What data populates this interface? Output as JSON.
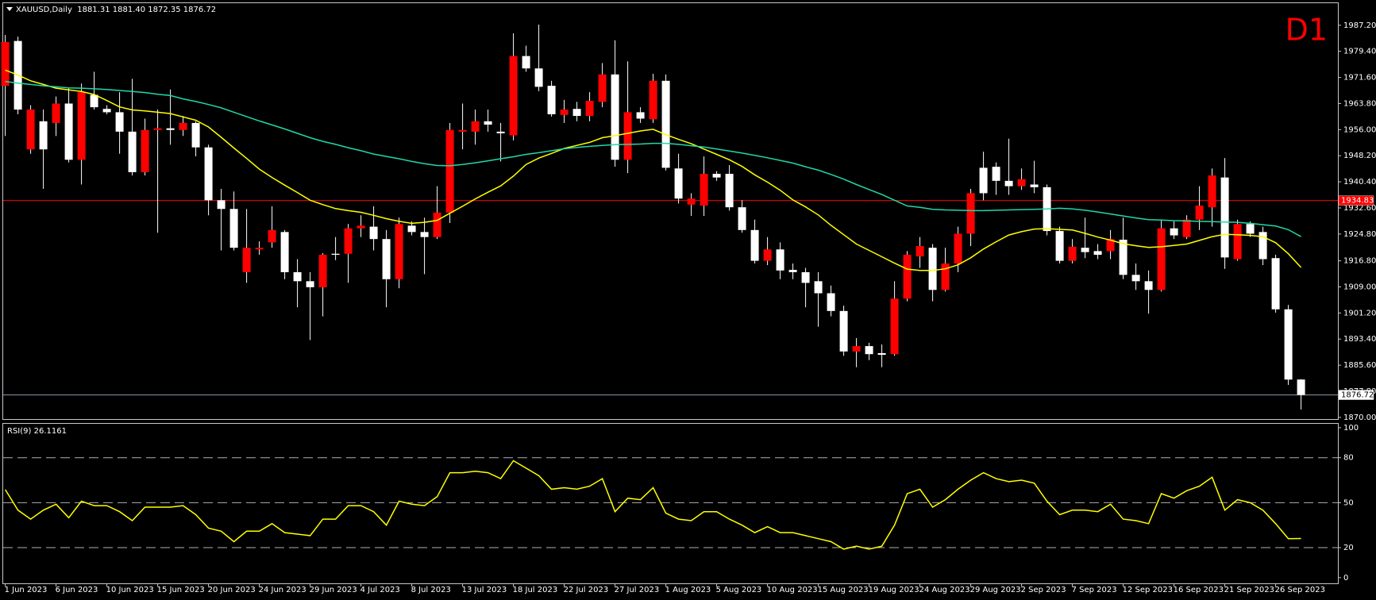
{
  "chart_data": [
    {
      "type": "candlestick",
      "title": "XAUUSD,Daily  1881.31 1881.40 1872.35 1876.72",
      "timeframe": "D1",
      "up_color": "#ff0000",
      "down_color": "#ffffff",
      "wick_color": "#ffffff",
      "open": [
        1969.1,
        1982.5,
        1950.1,
        1958.5,
        1958.0,
        1963.8,
        1947.0,
        1966.4,
        1962.2,
        1961.2,
        1955.4,
        1943.3,
        1955.9,
        1956.4,
        1955.9,
        1958.0,
        1950.7,
        1934.9,
        1932.3,
        1913.4,
        1920.2,
        1922.3,
        1925.4,
        1913.4,
        1910.7,
        1908.9,
        1918.9,
        1918.9,
        1926.5,
        1927.0,
        1923.3,
        1911.3,
        1927.3,
        1925.4,
        1923.9,
        1931.2,
        1955.4,
        1955.4,
        1958.5,
        1955.4,
        1954.3,
        1978.0,
        1974.3,
        1969.1,
        1960.4,
        1962.2,
        1960.1,
        1964.3,
        1972.5,
        1947.0,
        1961.2,
        1959.1,
        1970.6,
        1944.4,
        1933.6,
        1933.3,
        1942.8,
        1942.8,
        1932.8,
        1926.0,
        1916.8,
        1920.2,
        1914.1,
        1913.4,
        1910.7,
        1907.1,
        1901.8,
        1889.7,
        1891.3,
        1889.2,
        1888.9,
        1905.5,
        1918.1,
        1920.7,
        1908.1,
        1916.0,
        1924.9,
        1944.6,
        1944.9,
        1940.7,
        1939.1,
        1939.6,
        1938.8,
        1925.7,
        1916.8,
        1920.7,
        1919.7,
        1919.7,
        1923.1,
        1912.6,
        1910.7,
        1908.1,
        1926.5,
        1923.9,
        1929.1,
        1932.8,
        1941.7,
        1917.3,
        1927.8,
        1925.4,
        1917.6,
        1902.3,
        1881.31
      ],
      "high": [
        1984.3,
        1983.8,
        1963.3,
        1962.0,
        1965.9,
        1968.5,
        1969.8,
        1973.3,
        1963.3,
        1967.2,
        1971.2,
        1959.3,
        1962.0,
        1968.0,
        1960.1,
        1958.5,
        1951.5,
        1938.3,
        1937.5,
        1932.3,
        1922.6,
        1933.1,
        1926.0,
        1917.3,
        1913.4,
        1919.1,
        1923.9,
        1927.8,
        1930.4,
        1933.1,
        1926.0,
        1929.7,
        1928.6,
        1929.7,
        1939.1,
        1958.0,
        1963.8,
        1962.0,
        1962.0,
        1958.0,
        1984.8,
        1981.1,
        1987.4,
        1970.6,
        1964.9,
        1964.3,
        1967.2,
        1975.9,
        1982.7,
        1976.4,
        1962.7,
        1972.7,
        1972.5,
        1948.8,
        1937.0,
        1948.0,
        1943.6,
        1945.4,
        1934.9,
        1929.1,
        1923.9,
        1922.3,
        1916.0,
        1914.7,
        1913.4,
        1909.4,
        1903.4,
        1893.7,
        1892.3,
        1891.8,
        1910.7,
        1919.7,
        1923.9,
        1921.8,
        1920.7,
        1927.0,
        1938.3,
        1949.4,
        1946.2,
        1953.3,
        1944.4,
        1946.7,
        1939.6,
        1927.0,
        1923.3,
        1929.7,
        1921.8,
        1926.0,
        1929.7,
        1916.0,
        1913.9,
        1929.1,
        1928.6,
        1930.4,
        1939.1,
        1944.4,
        1947.5,
        1929.1,
        1928.6,
        1927.0,
        1918.6,
        1903.6,
        1881.4
      ],
      "low": [
        1954.1,
        1960.6,
        1948.8,
        1938.3,
        1954.1,
        1946.2,
        1939.6,
        1962.0,
        1960.6,
        1948.8,
        1942.3,
        1942.3,
        1925.2,
        1951.5,
        1954.1,
        1948.0,
        1930.4,
        1919.9,
        1919.9,
        1910.2,
        1918.6,
        1920.7,
        1911.3,
        1902.9,
        1893.1,
        1900.2,
        1917.0,
        1910.2,
        1923.9,
        1919.9,
        1902.9,
        1908.6,
        1924.4,
        1912.8,
        1923.3,
        1928.1,
        1950.1,
        1951.5,
        1955.4,
        1946.5,
        1952.8,
        1973.3,
        1967.5,
        1959.9,
        1958.0,
        1958.5,
        1958.5,
        1962.7,
        1944.9,
        1943.0,
        1958.0,
        1958.0,
        1943.8,
        1933.9,
        1930.2,
        1930.2,
        1940.7,
        1931.8,
        1925.2,
        1916.0,
        1915.5,
        1911.3,
        1911.3,
        1902.9,
        1897.1,
        1900.2,
        1888.4,
        1885.0,
        1887.1,
        1885.0,
        1888.4,
        1904.7,
        1914.7,
        1904.7,
        1907.6,
        1913.4,
        1921.2,
        1934.9,
        1936.5,
        1936.5,
        1938.0,
        1937.0,
        1924.4,
        1916.0,
        1916.0,
        1917.6,
        1917.3,
        1917.3,
        1911.3,
        1908.1,
        1901.0,
        1907.6,
        1923.3,
        1923.3,
        1926.0,
        1927.0,
        1914.4,
        1916.8,
        1923.9,
        1915.5,
        1901.3,
        1879.7,
        1872.35
      ],
      "close": [
        1982.2,
        1962.0,
        1962.0,
        1950.1,
        1963.8,
        1947.0,
        1967.2,
        1962.7,
        1961.2,
        1955.4,
        1943.3,
        1955.9,
        1956.4,
        1955.9,
        1958.0,
        1950.7,
        1934.9,
        1932.3,
        1920.7,
        1920.7,
        1920.7,
        1926.0,
        1913.4,
        1910.7,
        1908.9,
        1918.6,
        1918.6,
        1926.5,
        1927.3,
        1923.3,
        1911.3,
        1927.8,
        1925.4,
        1923.9,
        1931.2,
        1955.9,
        1955.9,
        1958.5,
        1957.5,
        1954.9,
        1978.0,
        1974.3,
        1968.8,
        1960.6,
        1962.0,
        1960.1,
        1964.6,
        1972.5,
        1947.0,
        1961.2,
        1959.3,
        1970.6,
        1944.6,
        1935.4,
        1935.4,
        1942.8,
        1941.7,
        1932.8,
        1926.0,
        1916.8,
        1920.2,
        1913.9,
        1913.4,
        1910.2,
        1907.1,
        1901.8,
        1889.7,
        1891.3,
        1888.9,
        1888.7,
        1905.5,
        1918.6,
        1921.2,
        1908.1,
        1916.0,
        1924.9,
        1937.0,
        1937.0,
        1940.7,
        1939.1,
        1941.2,
        1938.8,
        1925.7,
        1916.8,
        1921.0,
        1919.4,
        1918.6,
        1923.3,
        1912.6,
        1910.7,
        1908.1,
        1926.5,
        1924.4,
        1929.1,
        1933.3,
        1942.3,
        1917.8,
        1927.8,
        1924.9,
        1917.3,
        1902.3,
        1881.3,
        1876.72
      ],
      "overlays": [
        {
          "color": "#ffff00",
          "values": [
            1973.8,
            1972.3,
            1970.6,
            1969.5,
            1968.4,
            1967.9,
            1967.4,
            1966.5,
            1964.7,
            1962.8,
            1961.9,
            1961.6,
            1961.2,
            1960.8,
            1959.8,
            1958.8,
            1956.8,
            1953.7,
            1950.5,
            1947.4,
            1944.2,
            1941.7,
            1939.4,
            1937.2,
            1934.9,
            1933.6,
            1932.4,
            1931.8,
            1931.3,
            1930.4,
            1929.4,
            1928.6,
            1928.0,
            1928.3,
            1928.9,
            1931.0,
            1933.1,
            1935.3,
            1937.3,
            1939.2,
            1942.1,
            1945.6,
            1947.5,
            1948.9,
            1950.4,
            1951.3,
            1952.2,
            1953.6,
            1954.2,
            1954.9,
            1955.6,
            1956.1,
            1954.5,
            1953.1,
            1951.8,
            1950.2,
            1948.6,
            1947.0,
            1945.0,
            1942.5,
            1940.3,
            1937.9,
            1935.0,
            1932.9,
            1930.5,
            1927.4,
            1924.6,
            1921.8,
            1919.9,
            1918.0,
            1916.1,
            1914.3,
            1913.9,
            1913.9,
            1914.4,
            1915.6,
            1917.7,
            1920.3,
            1922.5,
            1924.5,
            1925.5,
            1926.3,
            1926.4,
            1926.2,
            1926.0,
            1925.0,
            1923.9,
            1923.0,
            1921.9,
            1921.3,
            1920.8,
            1921.0,
            1921.4,
            1921.8,
            1922.9,
            1924.0,
            1924.7,
            1924.6,
            1924.4,
            1924.0,
            1922.2,
            1918.9,
            1914.8
          ]
        },
        {
          "color": "#20d8a8",
          "values": [
            1970.4,
            1969.9,
            1969.5,
            1969.1,
            1968.8,
            1968.5,
            1968.4,
            1968.2,
            1968.0,
            1967.7,
            1967.4,
            1967.1,
            1966.6,
            1966.2,
            1965.2,
            1964.4,
            1963.5,
            1962.5,
            1961.2,
            1959.9,
            1958.6,
            1957.4,
            1956.2,
            1954.9,
            1953.6,
            1952.5,
            1951.6,
            1950.6,
            1949.7,
            1948.7,
            1948.0,
            1947.3,
            1946.5,
            1945.8,
            1945.3,
            1945.2,
            1945.6,
            1946.1,
            1946.7,
            1947.3,
            1947.9,
            1948.6,
            1949.1,
            1949.7,
            1950.3,
            1950.7,
            1951.0,
            1951.3,
            1951.5,
            1951.6,
            1951.7,
            1951.9,
            1951.9,
            1951.6,
            1951.2,
            1950.8,
            1950.2,
            1949.6,
            1949.0,
            1948.3,
            1947.6,
            1946.8,
            1946.0,
            1944.9,
            1943.9,
            1942.6,
            1941.2,
            1939.6,
            1938.1,
            1936.6,
            1934.9,
            1933.2,
            1932.8,
            1932.2,
            1932.0,
            1931.9,
            1931.8,
            1931.8,
            1931.9,
            1932.0,
            1932.1,
            1932.2,
            1932.3,
            1932.5,
            1932.3,
            1931.9,
            1931.4,
            1930.8,
            1930.2,
            1929.6,
            1929.1,
            1929.0,
            1928.8,
            1928.7,
            1928.6,
            1928.5,
            1928.4,
            1928.3,
            1928.0,
            1927.6,
            1927.2,
            1926.1,
            1924.0
          ]
        }
      ],
      "hlines": [
        {
          "value": 1934.83,
          "color": "#ff0000"
        },
        {
          "value": 1876.72,
          "color": "#8c9aa6"
        }
      ],
      "ylim": [
        1869.5,
        1993.8
      ],
      "yticks": [
        {
          "value": 1987.2,
          "label": "1987.20"
        },
        {
          "value": 1979.4,
          "label": "1979.40"
        },
        {
          "value": 1971.6,
          "label": "1971.60"
        },
        {
          "value": 1963.8,
          "label": "1963.80"
        },
        {
          "value": 1956,
          "label": "1956.00"
        },
        {
          "value": 1948.2,
          "label": "1948.20"
        },
        {
          "value": 1940.4,
          "label": "1940.40"
        },
        {
          "value": 1932.6,
          "label": "1932.60"
        },
        {
          "value": 1924.8,
          "label": "1924.80"
        },
        {
          "value": 1916.8,
          "label": "1916.80"
        },
        {
          "value": 1909,
          "label": "1909.00"
        },
        {
          "value": 1901.2,
          "label": "1901.20"
        },
        {
          "value": 1893.4,
          "label": "1893.40"
        },
        {
          "value": 1885.6,
          "label": "1885.60"
        },
        {
          "value": 1877.8,
          "label": "1877.80"
        },
        {
          "value": 1870,
          "label": "1870.00"
        }
      ]
    },
    {
      "type": "line",
      "title": "RSI(9) 26.1161",
      "color": "#ffff00",
      "categories": [
        "1 Jun 2023",
        null,
        null,
        null,
        "6 Jun 2023",
        null,
        null,
        null,
        "10 Jun 2023",
        null,
        null,
        null,
        "15 Jun 2023",
        null,
        null,
        null,
        "20 Jun 2023",
        null,
        null,
        null,
        "24 Jun 2023",
        null,
        null,
        null,
        "29 Jun 2023",
        null,
        null,
        null,
        "4 Jul 2023",
        null,
        null,
        null,
        "8 Jul 2023",
        null,
        null,
        null,
        "13 Jul 2023",
        null,
        null,
        null,
        "18 Jul 2023",
        null,
        null,
        null,
        "22 Jul 2023",
        null,
        null,
        null,
        "27 Jul 2023",
        null,
        null,
        null,
        "1 Aug 2023",
        null,
        null,
        null,
        "5 Aug 2023",
        null,
        null,
        null,
        "10 Aug 2023",
        null,
        null,
        null,
        "15 Aug 2023",
        null,
        null,
        null,
        "19 Aug 2023",
        null,
        null,
        null,
        "24 Aug 2023",
        null,
        null,
        null,
        "29 Aug 2023",
        null,
        null,
        null,
        "2 Sep 2023",
        null,
        null,
        null,
        "7 Sep 2023",
        null,
        null,
        null,
        "12 Sep 2023",
        null,
        null,
        null,
        "16 Sep 2023",
        null,
        null,
        null,
        "21 Sep 2023",
        null,
        null,
        null,
        "26 Sep 2023",
        null,
        null
      ],
      "values": [
        58.7,
        45,
        39,
        45,
        49,
        40,
        51,
        48,
        48,
        44,
        38,
        47,
        47,
        47,
        48,
        42,
        33,
        31,
        24,
        31,
        31,
        36,
        30,
        29,
        28,
        39,
        39,
        48,
        48,
        44,
        35,
        51,
        49,
        48,
        54,
        70,
        70,
        71,
        70,
        66,
        78,
        73,
        68,
        59,
        60,
        59,
        61,
        66,
        44,
        53,
        52,
        60,
        43,
        39,
        38,
        44,
        44,
        39,
        35,
        30,
        34,
        30,
        30,
        28,
        26,
        24,
        19,
        21,
        19,
        21,
        35,
        56,
        59,
        47,
        52,
        59,
        65,
        70,
        66,
        64,
        65,
        63,
        51,
        42,
        45,
        45,
        44,
        49,
        39,
        38,
        36,
        56,
        53,
        58,
        61,
        67,
        45,
        52,
        50,
        45,
        36,
        26,
        26.1161
      ],
      "levels": [
        20,
        50,
        80
      ],
      "ylim": [
        -3.8,
        102.6
      ],
      "yticks": [
        0,
        20,
        50,
        80,
        100
      ]
    }
  ]
}
